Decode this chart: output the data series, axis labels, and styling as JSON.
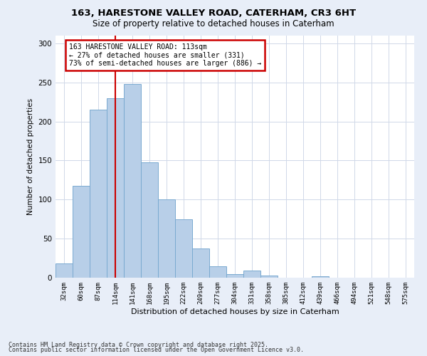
{
  "title1": "163, HARESTONE VALLEY ROAD, CATERHAM, CR3 6HT",
  "title2": "Size of property relative to detached houses in Caterham",
  "xlabel": "Distribution of detached houses by size in Caterham",
  "ylabel": "Number of detached properties",
  "categories": [
    "32sqm",
    "60sqm",
    "87sqm",
    "114sqm",
    "141sqm",
    "168sqm",
    "195sqm",
    "222sqm",
    "249sqm",
    "277sqm",
    "304sqm",
    "331sqm",
    "358sqm",
    "385sqm",
    "412sqm",
    "439sqm",
    "466sqm",
    "494sqm",
    "521sqm",
    "548sqm",
    "575sqm"
  ],
  "values": [
    18,
    118,
    215,
    230,
    248,
    148,
    100,
    75,
    37,
    15,
    5,
    9,
    3,
    0,
    0,
    2,
    0,
    0,
    0,
    0,
    0
  ],
  "bar_color": "#b8cfe8",
  "bar_edge_color": "#7aaad0",
  "vline_x": 3,
  "vline_color": "#cc0000",
  "annotation_title": "163 HARESTONE VALLEY ROAD: 113sqm",
  "annotation_line1": "← 27% of detached houses are smaller (331)",
  "annotation_line2": "73% of semi-detached houses are larger (886) →",
  "annotation_box_color": "#cc0000",
  "ylim": [
    0,
    310
  ],
  "yticks": [
    0,
    50,
    100,
    150,
    200,
    250,
    300
  ],
  "footnote1": "Contains HM Land Registry data © Crown copyright and database right 2025.",
  "footnote2": "Contains public sector information licensed under the Open Government Licence v3.0.",
  "bg_color": "#e8eef8",
  "plot_bg_color": "#ffffff",
  "grid_color": "#d0d8e8"
}
